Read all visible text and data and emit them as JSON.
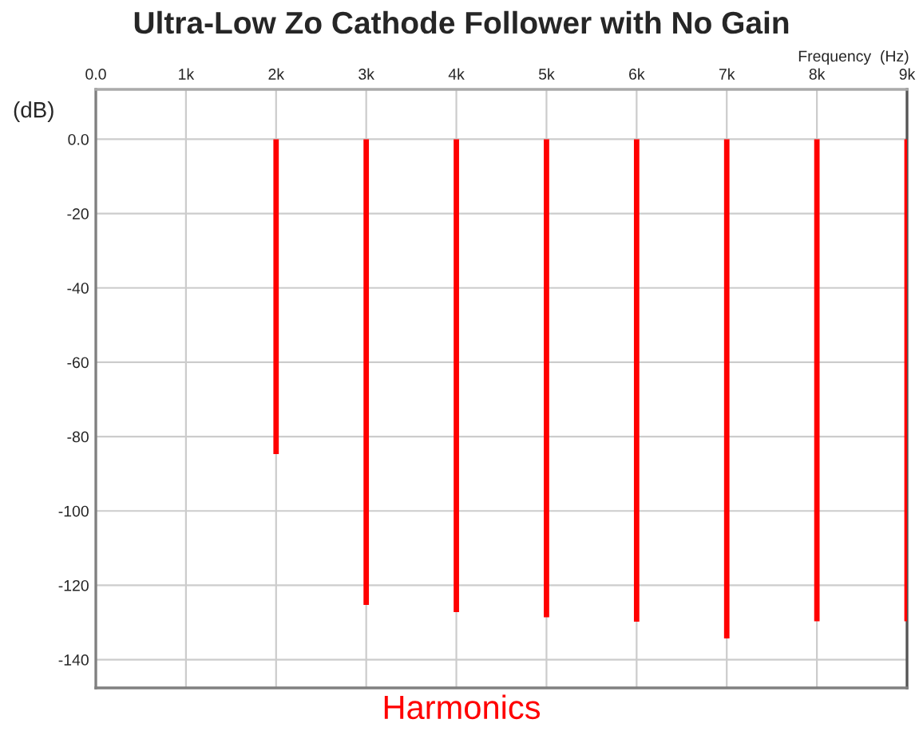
{
  "chart_data": {
    "type": "bar",
    "title": "Ultra-Low Zo Cathode Follower with No Gain",
    "xlabel": "Frequency  (Hz)",
    "ylabel": "(dB)",
    "annotations": [
      "Harmonics"
    ],
    "x": [
      1000,
      2000,
      3000,
      4000,
      5000,
      6000,
      7000,
      8000,
      9000
    ],
    "series": [
      {
        "color": "#ff0000",
        "values": [
          0,
          -84.7,
          -125.3,
          -127.2,
          -128.6,
          -129.8,
          -134.3,
          -129.7,
          -129.7
        ]
      }
    ],
    "xlim": [
      0,
      9000
    ],
    "xticks": [
      {
        "value": 0,
        "label": "0.0"
      },
      {
        "value": 1000,
        "label": "1k"
      },
      {
        "value": 2000,
        "label": "2k"
      },
      {
        "value": 3000,
        "label": "3k"
      },
      {
        "value": 4000,
        "label": "4k"
      },
      {
        "value": 5000,
        "label": "5k"
      },
      {
        "value": 6000,
        "label": "6k"
      },
      {
        "value": 7000,
        "label": "7k"
      },
      {
        "value": 8000,
        "label": "8k"
      },
      {
        "value": 9000,
        "label": "9k"
      }
    ],
    "ylim": [
      -147.6,
      13.4
    ],
    "yticks": [
      {
        "value": 0,
        "label": "0.0"
      },
      -20,
      -40,
      -60,
      -80,
      -100,
      -120,
      -140
    ],
    "grid": true
  }
}
